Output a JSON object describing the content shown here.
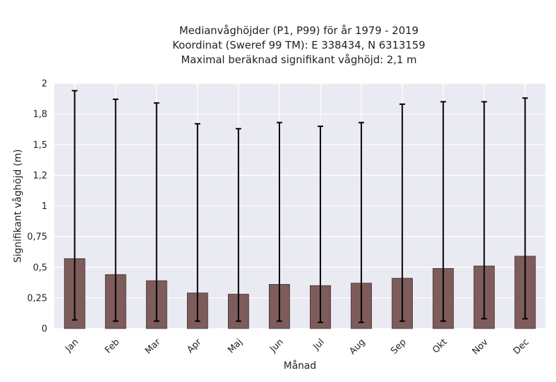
{
  "chart_data": {
    "type": "bar",
    "title_lines": [
      "Medianvåghöjder (P1, P99) för år 1979 - 2019",
      "Koordinat (Sweref 99 TM): E 338434, N 6313159",
      "Maximal beräknad signifikant våghöjd: 2,1 m"
    ],
    "xlabel": "Månad",
    "ylabel": "Signifikant våghöjd (m)",
    "categories": [
      "Jan",
      "Feb",
      "Mar",
      "Apr",
      "Maj",
      "Jun",
      "Jul",
      "Aug",
      "Sep",
      "Okt",
      "Nov",
      "Dec"
    ],
    "values": [
      0.57,
      0.44,
      0.39,
      0.29,
      0.28,
      0.36,
      0.35,
      0.37,
      0.41,
      0.49,
      0.51,
      0.59
    ],
    "p1": [
      0.07,
      0.06,
      0.06,
      0.06,
      0.06,
      0.06,
      0.05,
      0.05,
      0.06,
      0.06,
      0.08,
      0.08
    ],
    "p99": [
      1.94,
      1.87,
      1.84,
      1.67,
      1.63,
      1.68,
      1.65,
      1.68,
      1.83,
      1.85,
      1.85,
      1.88
    ],
    "ylim": [
      0,
      2.0
    ],
    "yticks": [
      0,
      0.25,
      0.5,
      0.75,
      1,
      1.25,
      1.5,
      1.75,
      2
    ],
    "ytick_labels": [
      "0",
      "0,25",
      "0,5",
      "0,75",
      "1",
      "1,2",
      "1,5",
      "1,8",
      "2"
    ],
    "grid": true,
    "colors": {
      "bar": "#7e5c5c",
      "bar_edge": "#3b2a2a",
      "error": "#000000",
      "plot_bg": "#eaeaf2",
      "grid": "#ffffff"
    }
  }
}
